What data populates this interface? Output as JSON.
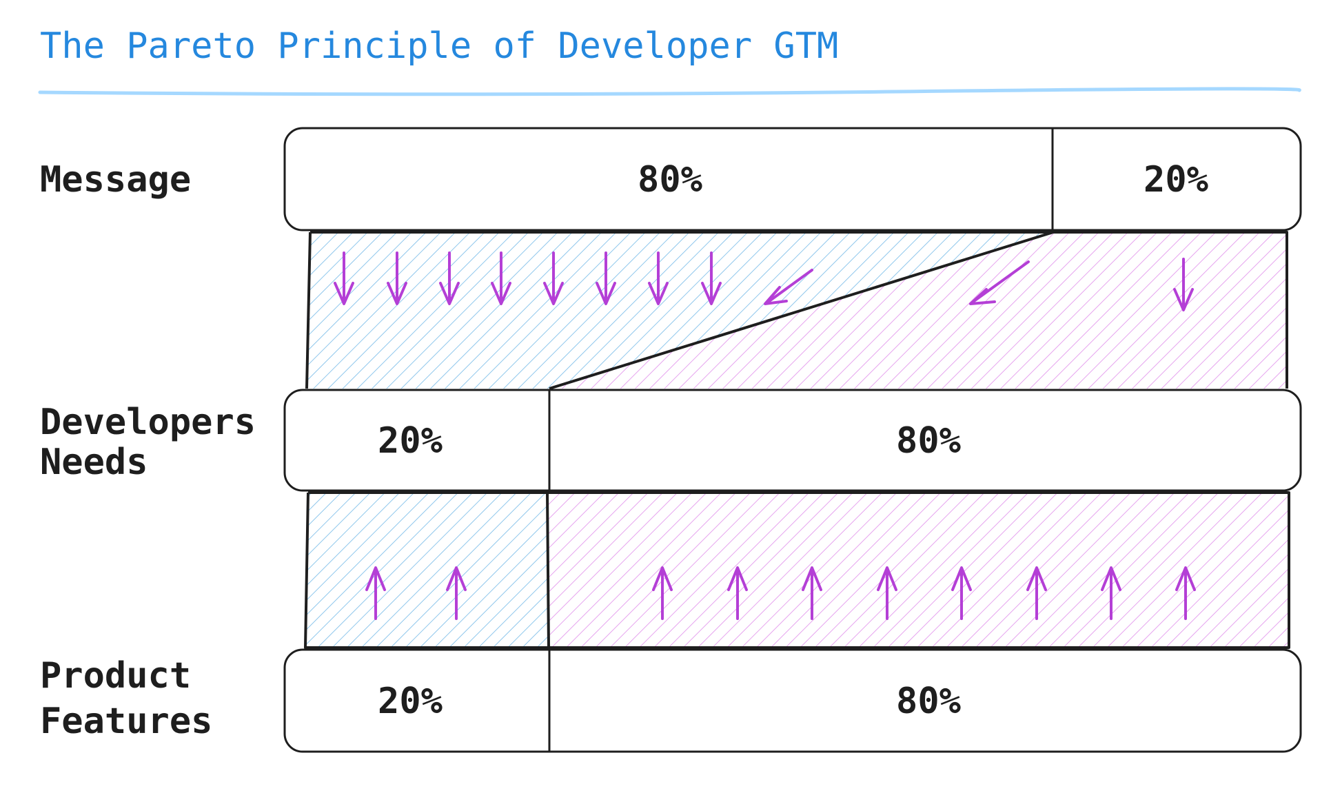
{
  "title": "The Pareto Principle of Developer GTM",
  "colors": {
    "title": "#2588de",
    "title_underline": "#a5d8ff",
    "blue_hatch": "#8fc7ec",
    "purple_hatch": "#e6a4ef",
    "arrow": "#b43fd6",
    "stroke": "#1e1e1e"
  },
  "rows": [
    {
      "label_lines": [
        "Message"
      ],
      "segments": [
        "80%",
        "20%"
      ]
    },
    {
      "label_lines": [
        "Developers",
        "Needs"
      ],
      "segments": [
        "20%",
        "80%"
      ]
    },
    {
      "label_lines": [
        "Product",
        "Features"
      ],
      "segments": [
        "20%",
        "80%"
      ]
    }
  ],
  "flows": [
    {
      "name": "message-to-needs",
      "direction": "down",
      "blue_arrows": 9,
      "purple_arrows": 2
    },
    {
      "name": "features-to-needs",
      "direction": "up",
      "blue_arrows": 2,
      "purple_arrows": 8
    }
  ]
}
